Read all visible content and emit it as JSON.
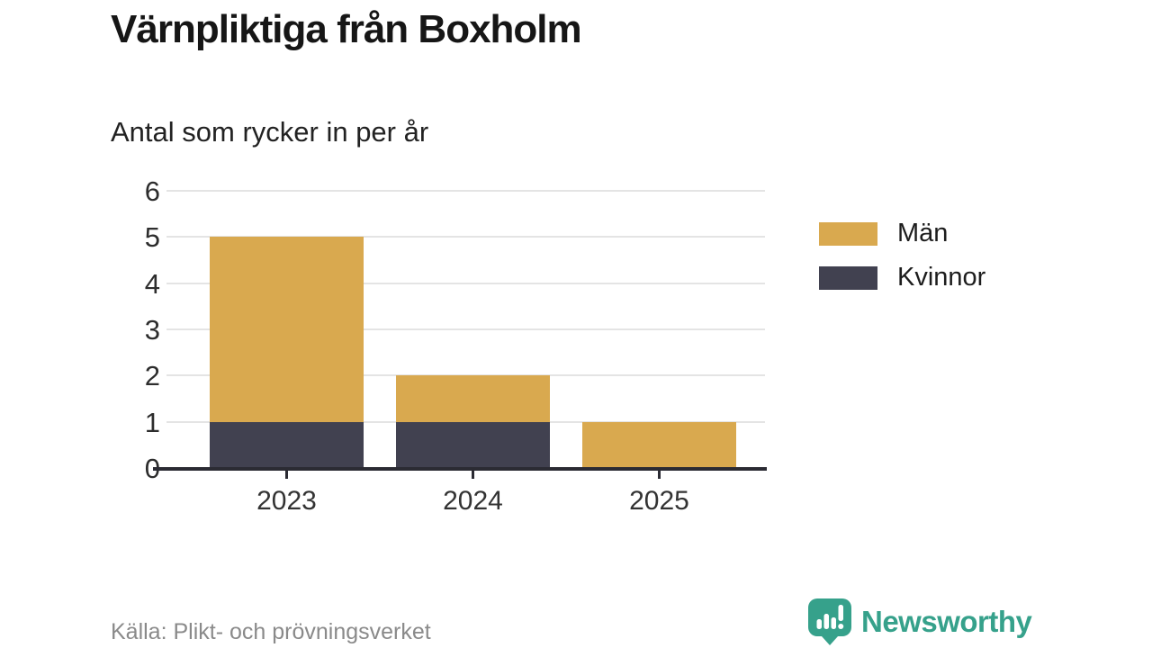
{
  "title": "Värnpliktiga från Boxholm",
  "subtitle": "Antal som rycker in per år",
  "chart_data": {
    "type": "bar",
    "stacked": true,
    "title": "Värnpliktiga från Boxholm",
    "subtitle_as_ylabel": "Antal som rycker in per år",
    "categories": [
      "2023",
      "2024",
      "2025"
    ],
    "series": [
      {
        "name": "Män",
        "values": [
          4,
          1,
          1
        ],
        "color": "#d9a94f"
      },
      {
        "name": "Kvinnor",
        "values": [
          1,
          1,
          0
        ],
        "color": "#414150"
      }
    ],
    "stack_order_bottom_to_top": [
      "Kvinnor",
      "Män"
    ],
    "totals": [
      5,
      2,
      1
    ],
    "ylim": [
      0,
      6
    ],
    "yticks": [
      0,
      1,
      2,
      3,
      4,
      5,
      6
    ],
    "grid": true,
    "legend_position": "right"
  },
  "footer": {
    "source": "Källa: Plikt- och prövningsverket",
    "brand": "Newsworthy"
  },
  "colors": {
    "bar_men": "#d9a94f",
    "bar_women": "#414150",
    "axis": "#2b2b33",
    "grid": "#e4e4e4",
    "brand_teal": "#36a18b"
  }
}
